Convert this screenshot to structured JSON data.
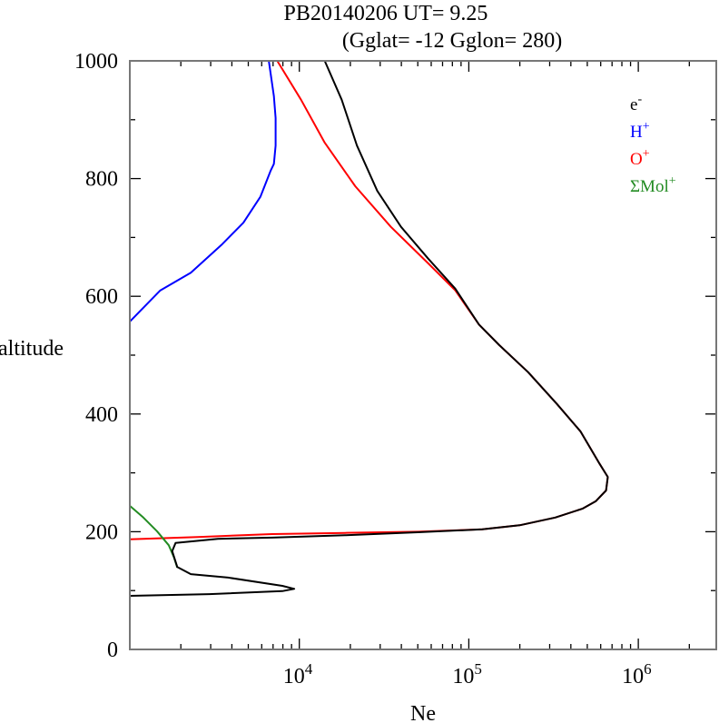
{
  "chart_data": {
    "type": "line",
    "title": "PB20140206   UT=  9.25",
    "subtitle": "(Gglat= -12   Gglon=  280)",
    "xlabel": "Ne",
    "ylabel": "altitude",
    "xscale": "log",
    "xlim_log10": [
      3.0,
      6.46
    ],
    "ylim": [
      0,
      1000
    ],
    "x_tick_labels": [
      {
        "exp": 4,
        "base": "10",
        "sup": "4"
      },
      {
        "exp": 5,
        "base": "10",
        "sup": "5"
      },
      {
        "exp": 6,
        "base": "10",
        "sup": "6"
      }
    ],
    "y_ticks": [
      0,
      200,
      400,
      600,
      800,
      1000
    ],
    "y_tick_labels": [
      "0",
      "200",
      "400",
      "600",
      "800",
      "1000"
    ],
    "legend_placement": "top-right",
    "series": [
      {
        "name": "e-",
        "label_base": "e",
        "label_sup": "-",
        "color": "#000000",
        "points_log10Ne_alt": [
          [
            4.15,
            1000
          ],
          [
            4.25,
            934
          ],
          [
            4.34,
            856
          ],
          [
            4.46,
            779
          ],
          [
            4.6,
            718
          ],
          [
            4.76,
            664
          ],
          [
            4.92,
            613
          ],
          [
            5.06,
            552
          ],
          [
            5.18,
            517
          ],
          [
            5.35,
            471
          ],
          [
            5.52,
            417
          ],
          [
            5.66,
            370
          ],
          [
            5.77,
            316
          ],
          [
            5.82,
            293
          ],
          [
            5.81,
            270
          ],
          [
            5.75,
            252
          ],
          [
            5.67,
            239
          ],
          [
            5.51,
            224
          ],
          [
            5.3,
            211
          ],
          [
            5.08,
            204
          ],
          [
            4.7,
            199
          ],
          [
            4.27,
            194
          ],
          [
            3.84,
            190
          ],
          [
            3.52,
            188
          ],
          [
            3.27,
            181
          ],
          [
            3.25,
            167
          ],
          [
            3.28,
            140
          ],
          [
            3.36,
            128
          ],
          [
            3.58,
            122
          ],
          [
            3.9,
            108
          ],
          [
            3.97,
            103
          ],
          [
            3.9,
            99
          ],
          [
            3.47,
            94
          ],
          [
            3.0,
            91
          ]
        ]
      },
      {
        "name": "H+",
        "label_base": "H",
        "label_sup": "+",
        "color": "#0000ff",
        "points_log10Ne_alt": [
          [
            3.82,
            1000
          ],
          [
            3.85,
            940
          ],
          [
            3.86,
            903
          ],
          [
            3.86,
            856
          ],
          [
            3.85,
            825
          ],
          [
            3.83,
            813
          ],
          [
            3.77,
            769
          ],
          [
            3.67,
            725
          ],
          [
            3.54,
            687
          ],
          [
            3.36,
            640
          ],
          [
            3.18,
            610
          ],
          [
            3.0,
            557
          ]
        ]
      },
      {
        "name": "O+",
        "label_base": "O",
        "label_sup": "+",
        "color": "#ff0000",
        "points_log10Ne_alt": [
          [
            3.87,
            1000
          ],
          [
            4.01,
            934
          ],
          [
            4.15,
            861
          ],
          [
            4.33,
            787
          ],
          [
            4.54,
            718
          ],
          [
            4.76,
            656
          ],
          [
            4.92,
            610
          ],
          [
            5.06,
            552
          ],
          [
            5.18,
            517
          ],
          [
            5.35,
            471
          ],
          [
            5.52,
            417
          ],
          [
            5.66,
            370
          ],
          [
            5.77,
            316
          ],
          [
            5.82,
            293
          ],
          [
            5.81,
            270
          ],
          [
            5.75,
            252
          ],
          [
            5.67,
            239
          ],
          [
            5.51,
            224
          ],
          [
            5.3,
            211
          ],
          [
            5.08,
            204
          ],
          [
            4.7,
            200
          ],
          [
            4.27,
            198
          ],
          [
            3.84,
            196
          ],
          [
            3.4,
            191
          ],
          [
            3.0,
            187
          ]
        ]
      },
      {
        "name": "ΣMol+",
        "label_base": "ΣMol",
        "label_sup": "+",
        "color": "#228b22",
        "points_log10Ne_alt": [
          [
            3.0,
            244
          ],
          [
            3.08,
            224
          ],
          [
            3.16,
            201
          ],
          [
            3.23,
            177
          ],
          [
            3.26,
            157
          ],
          [
            3.28,
            139
          ]
        ]
      }
    ]
  }
}
